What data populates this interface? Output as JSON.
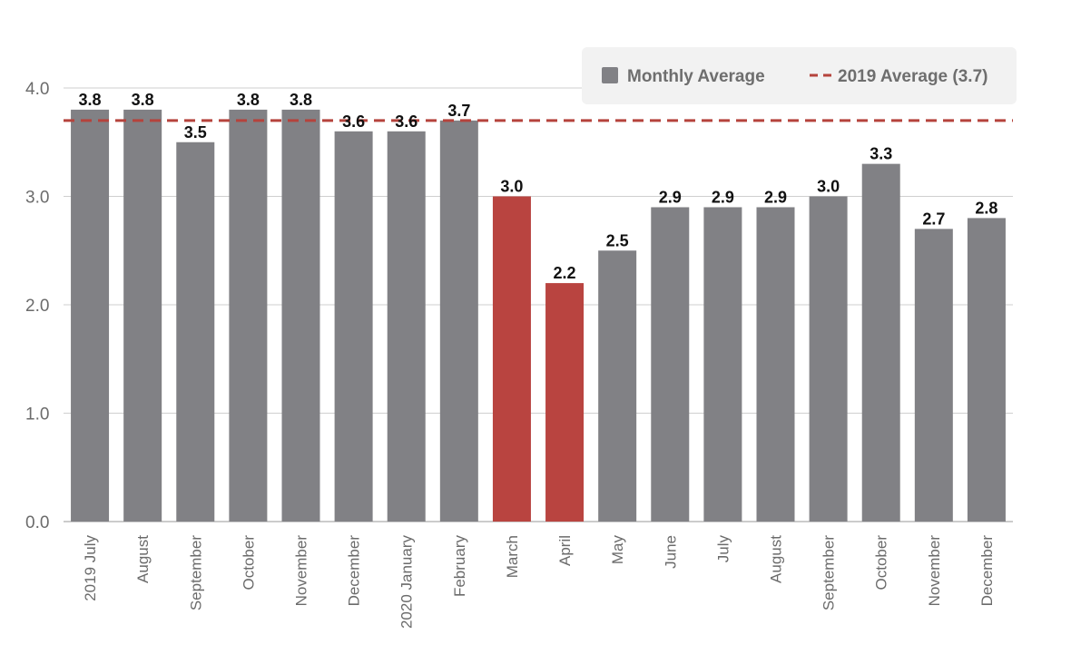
{
  "chart_data": {
    "type": "bar",
    "title": "",
    "xlabel": "",
    "ylabel": "",
    "ylim": [
      0,
      4
    ],
    "y_ticks": [
      "0.0",
      "1.0",
      "2.0",
      "3.0",
      "4.0"
    ],
    "categories": [
      "2019 July",
      "August",
      "September",
      "October",
      "November",
      "December",
      "2020 January",
      "February",
      "March",
      "April",
      "May",
      "June",
      "July",
      "August",
      "September",
      "October",
      "November",
      "December"
    ],
    "values": [
      3.8,
      3.8,
      3.5,
      3.8,
      3.8,
      3.6,
      3.6,
      3.7,
      3.0,
      2.2,
      2.5,
      2.9,
      2.9,
      2.9,
      3.0,
      3.3,
      2.7,
      2.8
    ],
    "value_labels": [
      "3.8",
      "3.8",
      "3.5",
      "3.8",
      "3.8",
      "3.6",
      "3.6",
      "3.7",
      "3.0",
      "2.2",
      "2.5",
      "2.9",
      "2.9",
      "2.9",
      "3.0",
      "3.3",
      "2.7",
      "2.8"
    ],
    "highlighted": [
      false,
      false,
      false,
      false,
      false,
      false,
      false,
      false,
      true,
      true,
      false,
      false,
      false,
      false,
      false,
      false,
      false,
      false
    ],
    "reference_line": {
      "label": "2019 Average (3.7)",
      "value": 3.7
    },
    "legend": {
      "position": "top-right",
      "items": [
        {
          "label": "Monthly Average",
          "kind": "bar"
        },
        {
          "label": "2019 Average (3.7)",
          "kind": "dashed-line"
        }
      ]
    },
    "grid": true
  },
  "colors": {
    "bar": "#818185",
    "highlight": "#b94440",
    "reference_line": "#b5433c",
    "grid": "#cfcfcf",
    "axis": "#9a9a9a",
    "legend_bg": "#f2f2f2",
    "legend_swatch": "#818185"
  }
}
